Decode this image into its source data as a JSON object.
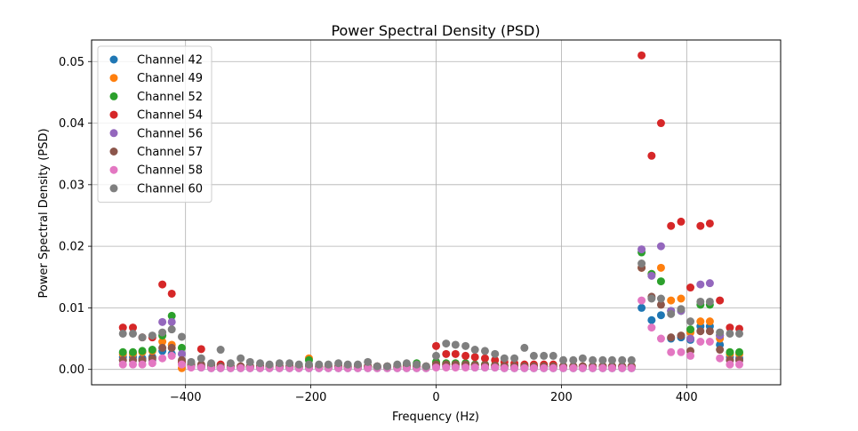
{
  "chart_data": {
    "type": "scatter",
    "title": "Power Spectral Density (PSD)",
    "xlabel": "Frequency (Hz)",
    "ylabel": "Power Spectral Density (PSD)",
    "xlim": [
      -550,
      550
    ],
    "ylim": [
      -0.0025,
      0.0535
    ],
    "xticks": [
      -400,
      -200,
      0,
      200,
      400
    ],
    "xtick_labels": [
      "−400",
      "−200",
      "0",
      "200",
      "400"
    ],
    "yticks": [
      0.0,
      0.01,
      0.02,
      0.03,
      0.04,
      0.05
    ],
    "ytick_labels": [
      "0.00",
      "0.01",
      "0.02",
      "0.03",
      "0.04",
      "0.05"
    ],
    "grid": true,
    "legend_position": "top-left",
    "x": [
      -500,
      -484,
      -469,
      -453,
      -437,
      -422,
      -406,
      -391,
      -375,
      -359,
      -344,
      -328,
      -312,
      -297,
      -281,
      -266,
      -250,
      -234,
      -219,
      -203,
      -187,
      -172,
      -156,
      -141,
      -125,
      -109,
      -94,
      -78,
      -62,
      -47,
      -31,
      -16,
      0,
      16,
      31,
      47,
      62,
      78,
      94,
      109,
      125,
      141,
      156,
      172,
      187,
      203,
      219,
      234,
      250,
      266,
      281,
      297,
      312,
      328,
      344,
      359,
      375,
      391,
      406,
      422,
      437,
      453,
      469,
      484
    ],
    "series": [
      {
        "name": "Channel 42",
        "color": "#1f77b4",
        "values": [
          0.002,
          0.002,
          0.0018,
          0.002,
          0.003,
          0.0025,
          0.001,
          0.0005,
          0.0003,
          0.0002,
          0.0002,
          0.0002,
          0.0002,
          0.0002,
          0.0002,
          0.0002,
          0.0002,
          0.0002,
          0.0002,
          0.0002,
          0.0002,
          0.0002,
          0.0002,
          0.0002,
          0.0002,
          0.0002,
          0.0002,
          0.0002,
          0.0002,
          0.0002,
          0.0002,
          0.0002,
          0.0005,
          0.0005,
          0.0004,
          0.0004,
          0.0003,
          0.0003,
          0.0003,
          0.0002,
          0.0002,
          0.0002,
          0.0002,
          0.0002,
          0.0002,
          0.0002,
          0.0002,
          0.0002,
          0.0002,
          0.0002,
          0.0002,
          0.0002,
          0.0002,
          0.01,
          0.008,
          0.0088,
          0.005,
          0.0052,
          0.0048,
          0.007,
          0.007,
          0.004,
          0.002,
          0.0018
        ]
      },
      {
        "name": "Channel 49",
        "color": "#ff7f0e",
        "values": [
          0.0025,
          0.0025,
          0.0028,
          0.003,
          0.0045,
          0.004,
          0.0002,
          0.0005,
          0.0005,
          0.0003,
          0.0003,
          0.0003,
          0.0003,
          0.0003,
          0.0003,
          0.0003,
          0.0003,
          0.0003,
          0.0003,
          0.0018,
          0.0003,
          0.0003,
          0.0003,
          0.0003,
          0.0003,
          0.0003,
          0.0003,
          0.0003,
          0.0003,
          0.0003,
          0.0003,
          0.0003,
          0.001,
          0.0008,
          0.0008,
          0.0008,
          0.0007,
          0.0007,
          0.0006,
          0.0005,
          0.0005,
          0.0005,
          0.0005,
          0.0004,
          0.0004,
          0.0004,
          0.0004,
          0.0004,
          0.0004,
          0.0004,
          0.0004,
          0.0004,
          0.0004,
          0.0165,
          0.0155,
          0.0165,
          0.0112,
          0.0115,
          0.006,
          0.0078,
          0.0078,
          0.005,
          0.0025,
          0.0025
        ]
      },
      {
        "name": "Channel 52",
        "color": "#2ca02c",
        "values": [
          0.0028,
          0.0028,
          0.003,
          0.0032,
          0.0055,
          0.0087,
          0.0035,
          0.0005,
          0.0005,
          0.0003,
          0.0003,
          0.0003,
          0.0003,
          0.0003,
          0.0003,
          0.0003,
          0.0003,
          0.0003,
          0.0003,
          0.0015,
          0.0003,
          0.0003,
          0.0003,
          0.0003,
          0.0003,
          0.0003,
          0.0003,
          0.0003,
          0.0003,
          0.0008,
          0.001,
          0.0003,
          0.0012,
          0.001,
          0.001,
          0.001,
          0.0008,
          0.0008,
          0.0007,
          0.0006,
          0.0006,
          0.0006,
          0.0005,
          0.0005,
          0.0005,
          0.0005,
          0.0005,
          0.0005,
          0.0005,
          0.0005,
          0.0005,
          0.0005,
          0.0005,
          0.019,
          0.0155,
          0.0143,
          0.0095,
          0.0095,
          0.0065,
          0.0105,
          0.0105,
          0.0055,
          0.0028,
          0.0028
        ]
      },
      {
        "name": "Channel 54",
        "color": "#d62728",
        "values": [
          0.0068,
          0.0068,
          0.0052,
          0.0052,
          0.0138,
          0.0123,
          0.0012,
          0.0008,
          0.0033,
          0.0008,
          0.0008,
          0.0005,
          0.0005,
          0.0005,
          0.0005,
          0.0005,
          0.0005,
          0.0005,
          0.0005,
          0.0005,
          0.0005,
          0.0005,
          0.0005,
          0.0005,
          0.0005,
          0.0005,
          0.0005,
          0.0005,
          0.0005,
          0.0005,
          0.0005,
          0.0005,
          0.0038,
          0.0025,
          0.0025,
          0.0022,
          0.002,
          0.0018,
          0.0015,
          0.0012,
          0.001,
          0.0008,
          0.0008,
          0.0008,
          0.0008,
          0.0005,
          0.0005,
          0.0005,
          0.0005,
          0.0005,
          0.0005,
          0.0005,
          0.0005,
          0.051,
          0.0347,
          0.04,
          0.0233,
          0.024,
          0.0133,
          0.0233,
          0.0237,
          0.0112,
          0.0068,
          0.0066
        ]
      },
      {
        "name": "Channel 56",
        "color": "#9467bd",
        "values": [
          0.0015,
          0.0015,
          0.0015,
          0.0015,
          0.0077,
          0.0077,
          0.0025,
          0.0005,
          0.0005,
          0.0003,
          0.0003,
          0.0003,
          0.0003,
          0.0003,
          0.0003,
          0.0003,
          0.0003,
          0.0003,
          0.0003,
          0.0003,
          0.0003,
          0.0003,
          0.0003,
          0.0003,
          0.0003,
          0.0003,
          0.0003,
          0.0003,
          0.0003,
          0.0003,
          0.0003,
          0.0003,
          0.0005,
          0.0005,
          0.0005,
          0.0005,
          0.0004,
          0.0004,
          0.0004,
          0.0003,
          0.0003,
          0.0003,
          0.0003,
          0.0003,
          0.0003,
          0.0003,
          0.0003,
          0.0003,
          0.0003,
          0.0003,
          0.0003,
          0.0003,
          0.0003,
          0.0195,
          0.0152,
          0.02,
          0.0095,
          0.0095,
          0.005,
          0.0138,
          0.014,
          0.0055,
          0.0015,
          0.0015
        ]
      },
      {
        "name": "Channel 57",
        "color": "#8c564b",
        "values": [
          0.0015,
          0.0015,
          0.0015,
          0.0018,
          0.0035,
          0.0035,
          0.0015,
          0.0008,
          0.0008,
          0.0005,
          0.0005,
          0.0005,
          0.0005,
          0.0005,
          0.0005,
          0.0005,
          0.0005,
          0.0005,
          0.0005,
          0.0005,
          0.0005,
          0.0005,
          0.0005,
          0.0005,
          0.0005,
          0.0005,
          0.0005,
          0.0005,
          0.0005,
          0.0005,
          0.0005,
          0.0005,
          0.0008,
          0.0008,
          0.0008,
          0.0008,
          0.0007,
          0.0007,
          0.0006,
          0.0005,
          0.0005,
          0.0005,
          0.0005,
          0.0005,
          0.0005,
          0.0005,
          0.0005,
          0.0005,
          0.0005,
          0.0005,
          0.0005,
          0.0005,
          0.0005,
          0.0165,
          0.0118,
          0.0105,
          0.0052,
          0.0055,
          0.003,
          0.0062,
          0.0062,
          0.0032,
          0.0015,
          0.0015
        ]
      },
      {
        "name": "Channel 58",
        "color": "#e377c2",
        "values": [
          0.0008,
          0.0008,
          0.0008,
          0.001,
          0.0018,
          0.0022,
          0.0008,
          0.0003,
          0.0003,
          0.0002,
          0.0002,
          0.0002,
          0.0002,
          0.0002,
          0.0002,
          0.0002,
          0.0002,
          0.0002,
          0.0002,
          0.0002,
          0.0002,
          0.0002,
          0.0002,
          0.0002,
          0.0002,
          0.0002,
          0.0002,
          0.0002,
          0.0002,
          0.0002,
          0.0002,
          0.0002,
          0.0003,
          0.0003,
          0.0003,
          0.0003,
          0.0003,
          0.0003,
          0.0003,
          0.0002,
          0.0002,
          0.0002,
          0.0002,
          0.0002,
          0.0002,
          0.0002,
          0.0002,
          0.0002,
          0.0002,
          0.0002,
          0.0002,
          0.0002,
          0.0002,
          0.0112,
          0.0068,
          0.005,
          0.0028,
          0.0028,
          0.0022,
          0.0045,
          0.0045,
          0.0018,
          0.0008,
          0.0008
        ]
      },
      {
        "name": "Channel 60",
        "color": "#7f7f7f",
        "values": [
          0.0058,
          0.0058,
          0.0052,
          0.0055,
          0.006,
          0.0065,
          0.0053,
          0.0012,
          0.0018,
          0.001,
          0.0032,
          0.001,
          0.0018,
          0.0012,
          0.001,
          0.0008,
          0.001,
          0.001,
          0.0008,
          0.0008,
          0.0008,
          0.0008,
          0.001,
          0.0008,
          0.0008,
          0.0012,
          0.0005,
          0.0005,
          0.0008,
          0.001,
          0.0008,
          0.0005,
          0.0022,
          0.0042,
          0.004,
          0.0038,
          0.0032,
          0.003,
          0.0025,
          0.0018,
          0.0018,
          0.0035,
          0.0022,
          0.0022,
          0.0022,
          0.0015,
          0.0015,
          0.0018,
          0.0015,
          0.0015,
          0.0015,
          0.0015,
          0.0015,
          0.0172,
          0.0115,
          0.0115,
          0.009,
          0.0098,
          0.0078,
          0.011,
          0.011,
          0.006,
          0.0058,
          0.0058
        ]
      }
    ]
  }
}
